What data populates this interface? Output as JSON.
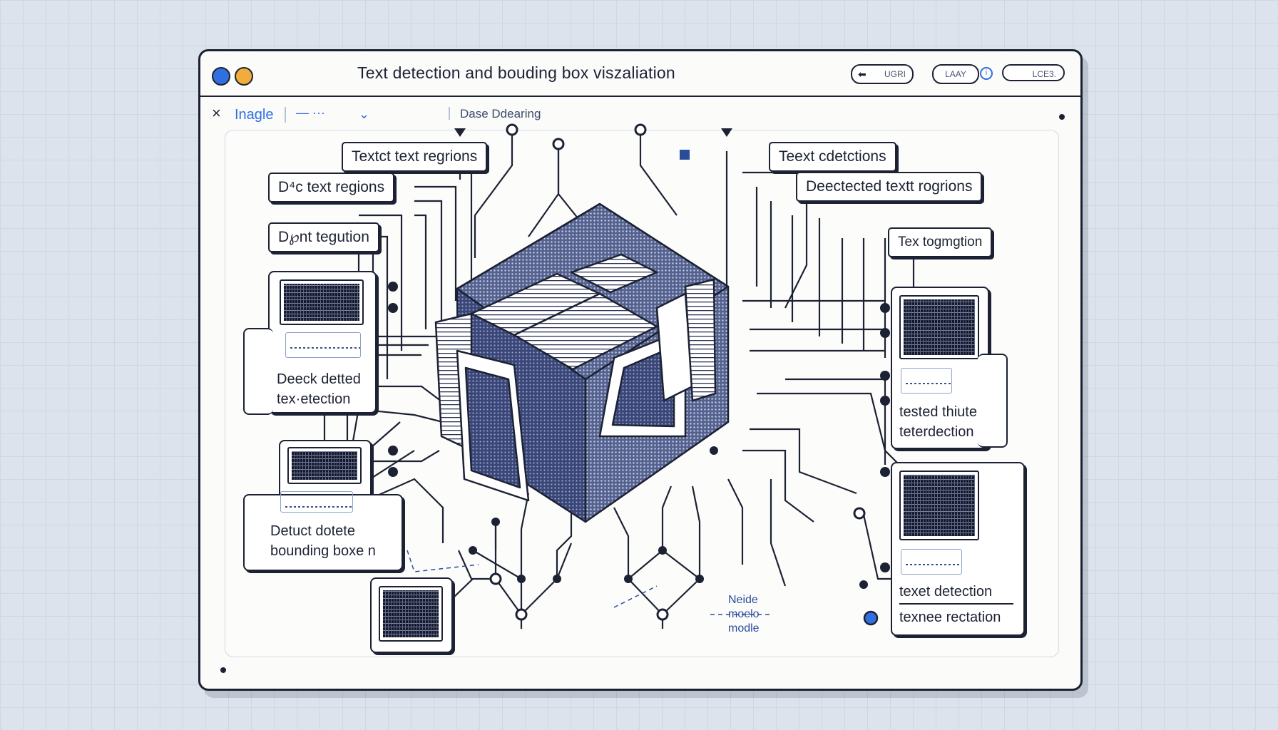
{
  "window": {
    "title": "Text detection  and bouding box viszaliation",
    "buttons": [
      "UGRI",
      "LAAY",
      "LCE3."
    ]
  },
  "toolbar": {
    "close": "×",
    "image_tab": "Inagle",
    "dash": "— ···",
    "chevron": "⌄",
    "dataset": "Dase Ddearing"
  },
  "labels": {
    "left_top": "Textct text regrions",
    "left_mid": "D⁴c text regions",
    "left_third": "D℘nt tegution",
    "right_top": "Teext cdetctions",
    "right_mid": "Deectected textt rogrions",
    "right_third": "Tex togmgtion"
  },
  "cards": {
    "left_1": [
      "Deeck detted",
      "tex·etection"
    ],
    "left_2": [
      "Detuct dotete",
      "bounding boxe n"
    ],
    "right_1": [
      "tested thiute",
      "teterdection"
    ],
    "right_2": [
      "texet  detection",
      "texnee rectation"
    ]
  },
  "model_note": [
    "Neide",
    "moelo",
    "modle"
  ]
}
